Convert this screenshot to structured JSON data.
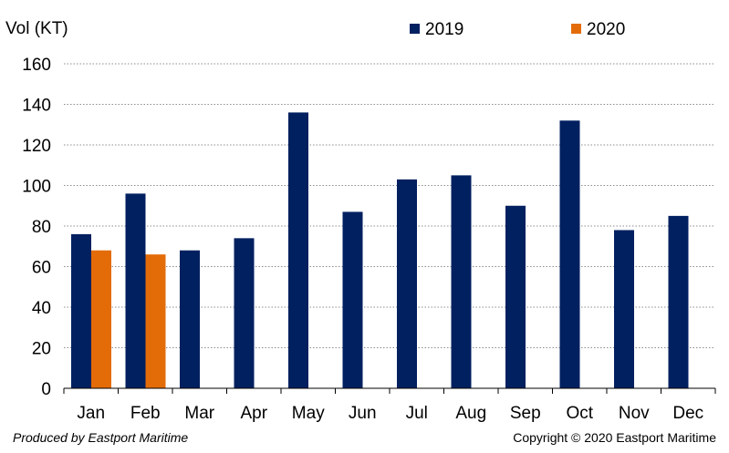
{
  "chart_data": {
    "type": "bar",
    "ylabel": "Vol (KT)",
    "ylim": [
      0,
      160
    ],
    "yticks": [
      0,
      20,
      40,
      60,
      80,
      100,
      120,
      140,
      160
    ],
    "grid": true,
    "legend_position": "top",
    "categories": [
      "Jan",
      "Feb",
      "Mar",
      "Apr",
      "May",
      "Jun",
      "Jul",
      "Aug",
      "Sep",
      "Oct",
      "Nov",
      "Dec"
    ],
    "series": [
      {
        "name": "2019",
        "color": "#002060",
        "values": [
          76,
          96,
          68,
          74,
          136,
          87,
          103,
          105,
          90,
          132,
          78,
          85
        ]
      },
      {
        "name": "2020",
        "color": "#E36C09",
        "values": [
          68,
          66,
          null,
          null,
          null,
          null,
          null,
          null,
          null,
          null,
          null,
          null
        ]
      }
    ]
  },
  "footer": {
    "producer": "Produced by Eastport Maritime",
    "copyright": "Copyright © 2020 Eastport Maritime"
  }
}
